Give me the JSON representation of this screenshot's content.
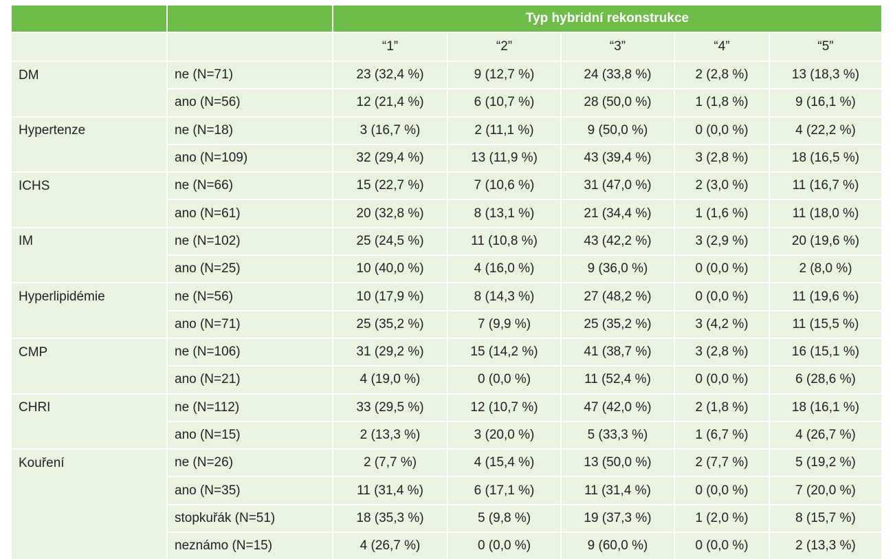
{
  "header_title": "Typ hybridní rekonstrukce",
  "columns": [
    "“1”",
    "“2”",
    "“3”",
    "“4”",
    "“5”"
  ],
  "groups": [
    {
      "label": "DM",
      "rows": [
        {
          "sub": "ne (N=71)",
          "cells": [
            "23 (32,4 %)",
            "9 (12,7 %)",
            "24 (33,8 %)",
            "2 (2,8 %)",
            "13 (18,3 %)"
          ]
        },
        {
          "sub": "ano (N=56)",
          "cells": [
            "12 (21,4 %)",
            "6 (10,7 %)",
            "28 (50,0 %)",
            "1 (1,8 %)",
            "9 (16,1 %)"
          ]
        }
      ]
    },
    {
      "label": "Hypertenze",
      "rows": [
        {
          "sub": "ne (N=18)",
          "cells": [
            "3 (16,7 %)",
            "2 (11,1 %)",
            "9 (50,0 %)",
            "0 (0,0 %)",
            "4 (22,2 %)"
          ]
        },
        {
          "sub": "ano (N=109)",
          "cells": [
            "32 (29,4 %)",
            "13 (11,9 %)",
            "43 (39,4 %)",
            "3 (2,8 %)",
            "18 (16,5 %)"
          ]
        }
      ]
    },
    {
      "label": "ICHS",
      "rows": [
        {
          "sub": "ne (N=66)",
          "cells": [
            "15 (22,7 %)",
            "7 (10,6 %)",
            "31 (47,0 %)",
            "2 (3,0 %)",
            "11 (16,7 %)"
          ]
        },
        {
          "sub": "ano (N=61)",
          "cells": [
            "20 (32,8 %)",
            "8 (13,1 %)",
            "21 (34,4 %)",
            "1 (1,6 %)",
            "11 (18,0 %)"
          ]
        }
      ]
    },
    {
      "label": "IM",
      "rows": [
        {
          "sub": "ne (N=102)",
          "cells": [
            "25 (24,5 %)",
            "11 (10,8 %)",
            "43 (42,2 %)",
            "3 (2,9 %)",
            "20 (19,6 %)"
          ]
        },
        {
          "sub": "ano (N=25)",
          "cells": [
            "10 (40,0 %)",
            "4 (16,0 %)",
            "9 (36,0 %)",
            "0 (0,0 %)",
            "2 (8,0 %)"
          ]
        }
      ]
    },
    {
      "label": "Hyperlipidémie",
      "rows": [
        {
          "sub": "ne (N=56)",
          "cells": [
            "10 (17,9 %)",
            "8 (14,3 %)",
            "27 (48,2 %)",
            "0 (0,0 %)",
            "11 (19,6 %)"
          ]
        },
        {
          "sub": "ano (N=71)",
          "cells": [
            "25 (35,2 %)",
            "7 (9,9 %)",
            "25 (35,2 %)",
            "3 (4,2 %)",
            "11 (15,5 %)"
          ]
        }
      ]
    },
    {
      "label": "CMP",
      "rows": [
        {
          "sub": "ne (N=106)",
          "cells": [
            "31 (29,2 %)",
            "15 (14,2 %)",
            "41 (38,7 %)",
            "3 (2,8 %)",
            "16 (15,1 %)"
          ]
        },
        {
          "sub": "ano (N=21)",
          "cells": [
            "4 (19,0 %)",
            "0 (0,0 %)",
            "11 (52,4 %)",
            "0 (0,0 %)",
            "6 (28,6 %)"
          ]
        }
      ]
    },
    {
      "label": "CHRI",
      "rows": [
        {
          "sub": "ne (N=112)",
          "cells": [
            "33 (29,5 %)",
            "12 (10,7 %)",
            "47 (42,0 %)",
            "2 (1,8 %)",
            "18 (16,1 %)"
          ]
        },
        {
          "sub": "ano (N=15)",
          "cells": [
            "2 (13,3 %)",
            "3 (20,0 %)",
            "5 (33,3 %)",
            "1 (6,7 %)",
            "4 (26,7 %)"
          ]
        }
      ]
    },
    {
      "label": "Kouření",
      "rows": [
        {
          "sub": "ne (N=26)",
          "cells": [
            "2 (7,7 %)",
            "4 (15,4 %)",
            "13 (50,0 %)",
            "2 (7,7 %)",
            "5 (19,2 %)"
          ]
        },
        {
          "sub": "ano (N=35)",
          "cells": [
            "11 (31,4 %)",
            "6 (17,1 %)",
            "11 (31,4 %)",
            "0 (0,0 %)",
            "7 (20,0 %)"
          ]
        },
        {
          "sub": "stopkuřák (N=51)",
          "cells": [
            "18 (35,3 %)",
            "5 (9,8 %)",
            "19 (37,3 %)",
            "1 (2,0 %)",
            "8 (15,7 %)"
          ]
        },
        {
          "sub": "neznámo (N=15)",
          "cells": [
            "4 (26,7 %)",
            "0 (0,0 %)",
            "9 (60,0 %)",
            "0 (0,0 %)",
            "2 (13,3 %)"
          ]
        }
      ]
    }
  ]
}
